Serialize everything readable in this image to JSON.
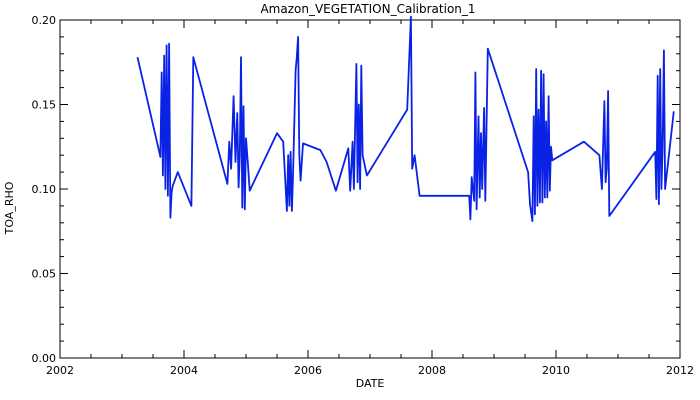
{
  "chart_data": {
    "type": "line",
    "title": "Amazon_VEGETATION_Calibration_1",
    "xlabel": "DATE",
    "ylabel": "TOA_RHO",
    "xlim": [
      2002,
      2012
    ],
    "ylim": [
      0.0,
      0.2
    ],
    "x_ticks": [
      "2002",
      "2004",
      "2006",
      "2008",
      "2010",
      "2012"
    ],
    "y_ticks": [
      "0.00",
      "0.05",
      "0.10",
      "0.15",
      "0.20"
    ],
    "line_color": "#0a22e6",
    "grid": false,
    "series": [
      {
        "x": [
          2003.25,
          2003.62,
          2003.64,
          2003.66,
          2003.68,
          2003.7,
          2003.72,
          2003.74,
          2003.76,
          2003.78,
          2003.8,
          2003.82,
          2003.84,
          2003.9,
          2004.12,
          2004.15,
          2004.7,
          2004.73,
          2004.76,
          2004.8,
          2004.83,
          2004.86,
          2004.88,
          2004.9,
          2004.92,
          2004.94,
          2004.96,
          2004.98,
          2005.0,
          2005.03,
          2005.06,
          2005.5,
          2005.6,
          2005.66,
          2005.68,
          2005.7,
          2005.72,
          2005.74,
          2005.76,
          2005.8,
          2005.82,
          2005.84,
          2005.86,
          2005.88,
          2005.92,
          2006.2,
          2006.3,
          2006.45,
          2006.65,
          2006.68,
          2006.72,
          2006.74,
          2006.78,
          2006.8,
          2006.82,
          2006.84,
          2006.86,
          2006.88,
          2006.95,
          2007.6,
          2007.66,
          2007.68,
          2007.72,
          2007.8,
          2008.6,
          2008.62,
          2008.64,
          2008.68,
          2008.7,
          2008.72,
          2008.75,
          2008.77,
          2008.79,
          2008.81,
          2008.84,
          2008.86,
          2008.9,
          2009.55,
          2009.58,
          2009.62,
          2009.64,
          2009.66,
          2009.68,
          2009.7,
          2009.72,
          2009.74,
          2009.76,
          2009.78,
          2009.8,
          2009.82,
          2009.84,
          2009.86,
          2009.88,
          2009.9,
          2009.92,
          2009.94,
          2010.45,
          2010.7,
          2010.74,
          2010.78,
          2010.8,
          2010.82,
          2010.84,
          2010.86,
          2011.6,
          2011.62,
          2011.64,
          2011.66,
          2011.68,
          2011.7,
          2011.72,
          2011.74,
          2011.76,
          2011.9
        ],
        "y": [
          0.178,
          0.119,
          0.169,
          0.108,
          0.179,
          0.1,
          0.185,
          0.096,
          0.186,
          0.083,
          0.098,
          0.102,
          0.104,
          0.11,
          0.09,
          0.178,
          0.103,
          0.128,
          0.112,
          0.155,
          0.116,
          0.145,
          0.101,
          0.12,
          0.178,
          0.089,
          0.149,
          0.088,
          0.13,
          0.115,
          0.099,
          0.133,
          0.128,
          0.087,
          0.12,
          0.09,
          0.122,
          0.087,
          0.11,
          0.17,
          0.178,
          0.19,
          0.12,
          0.105,
          0.127,
          0.123,
          0.116,
          0.099,
          0.124,
          0.099,
          0.128,
          0.1,
          0.174,
          0.104,
          0.15,
          0.1,
          0.173,
          0.12,
          0.108,
          0.147,
          0.202,
          0.112,
          0.12,
          0.096,
          0.096,
          0.082,
          0.107,
          0.093,
          0.169,
          0.088,
          0.143,
          0.095,
          0.133,
          0.1,
          0.148,
          0.093,
          0.183,
          0.11,
          0.091,
          0.081,
          0.143,
          0.085,
          0.171,
          0.09,
          0.147,
          0.092,
          0.17,
          0.092,
          0.168,
          0.095,
          0.14,
          0.095,
          0.155,
          0.099,
          0.125,
          0.117,
          0.128,
          0.12,
          0.1,
          0.152,
          0.104,
          0.112,
          0.158,
          0.084,
          0.122,
          0.094,
          0.167,
          0.091,
          0.171,
          0.1,
          0.125,
          0.182,
          0.1,
          0.146
        ]
      }
    ]
  }
}
